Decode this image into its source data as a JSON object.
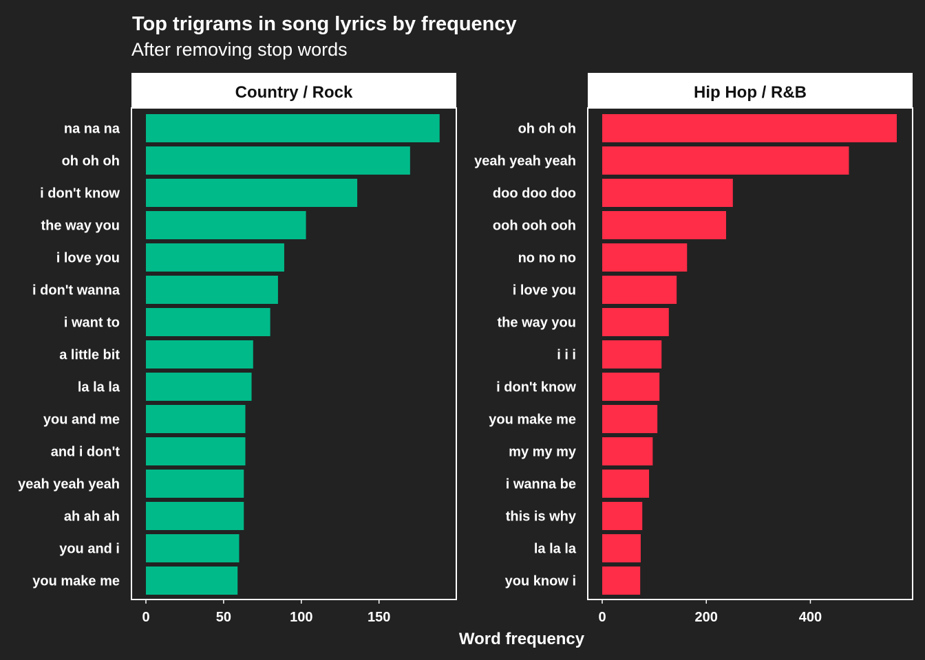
{
  "chart_data": {
    "type": "bar",
    "title": "Top trigrams in song lyrics by frequency",
    "subtitle": "After removing stop words",
    "xlabel": "Word frequency",
    "grid": false,
    "panels": [
      {
        "strip": "Country / Rock",
        "color": "#00BA89",
        "xlim": [
          0,
          190
        ],
        "ticks": [
          0,
          50,
          100,
          150
        ],
        "tick_labels": [
          "0",
          "50",
          "100",
          "150"
        ],
        "categories": [
          "na na na",
          "oh oh oh",
          "i don't know",
          "the way you",
          "i love you",
          "i don't wanna",
          "i want to",
          "a little bit",
          "la la la",
          "you and me",
          "and i don't",
          "yeah yeah yeah",
          "ah ah ah",
          "you and i",
          "you make me"
        ],
        "values": [
          189,
          170,
          136,
          103,
          89,
          85,
          80,
          69,
          68,
          64,
          64,
          63,
          63,
          60,
          59
        ]
      },
      {
        "strip": "Hip Hop / R&B",
        "color": "#FF2D47",
        "xlim": [
          0,
          566
        ],
        "ticks": [
          0,
          200,
          400
        ],
        "tick_labels": [
          "0",
          "200",
          "400"
        ],
        "categories": [
          "oh oh oh",
          "yeah yeah yeah",
          "doo doo doo",
          "ooh ooh ooh",
          "no no no",
          "i love you",
          "the way you",
          "i i i",
          "i don't know",
          "you make me",
          "my my my",
          "i wanna be",
          "this is why",
          "la la la",
          "you know i"
        ],
        "values": [
          566,
          474,
          251,
          238,
          163,
          143,
          128,
          114,
          110,
          106,
          97,
          90,
          77,
          74,
          73
        ]
      }
    ]
  }
}
